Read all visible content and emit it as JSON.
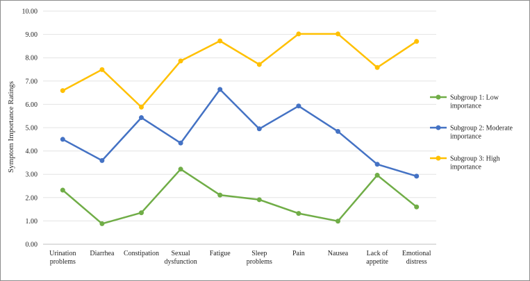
{
  "chart_data": {
    "type": "line",
    "title": "",
    "xlabel": "",
    "ylabel": "Symptom Importance Ratings",
    "ylim": [
      0,
      10
    ],
    "y_ticks": [
      "0.00",
      "1.00",
      "2.00",
      "3.00",
      "4.00",
      "5.00",
      "6.00",
      "7.00",
      "8.00",
      "9.00",
      "10.00"
    ],
    "grid": "horizontal",
    "legend_position": "right",
    "categories": [
      [
        "Urination",
        "problems"
      ],
      [
        "Diarrhea"
      ],
      [
        "Constipation"
      ],
      [
        "Sexual",
        "dysfunction"
      ],
      [
        "Fatigue"
      ],
      [
        "Sleep",
        "problems"
      ],
      [
        "Pain"
      ],
      [
        "Nausea"
      ],
      [
        "Lack of",
        "appetite"
      ],
      [
        "Emotional",
        "distress"
      ]
    ],
    "series": [
      {
        "name": "Subgroup 1: Low importance",
        "legend_lines": [
          "Subgroup 1: Low",
          "importance"
        ],
        "color": "#70AD47",
        "values": [
          2.32,
          0.88,
          1.35,
          3.22,
          2.11,
          1.91,
          1.32,
          0.99,
          2.96,
          1.6
        ]
      },
      {
        "name": "Subgroup 2: Moderate importance",
        "legend_lines": [
          "Subgroup 2: Moderate",
          "importance"
        ],
        "color": "#4472C4",
        "values": [
          4.5,
          3.59,
          5.43,
          4.34,
          6.64,
          4.95,
          5.93,
          4.84,
          3.43,
          2.92
        ]
      },
      {
        "name": "Subgroup 3: High importance",
        "legend_lines": [
          "Subgroup 3: High",
          "importance"
        ],
        "color": "#FFC000",
        "values": [
          6.59,
          7.49,
          5.88,
          7.86,
          8.72,
          7.71,
          9.02,
          9.02,
          7.58,
          8.7
        ]
      }
    ]
  }
}
